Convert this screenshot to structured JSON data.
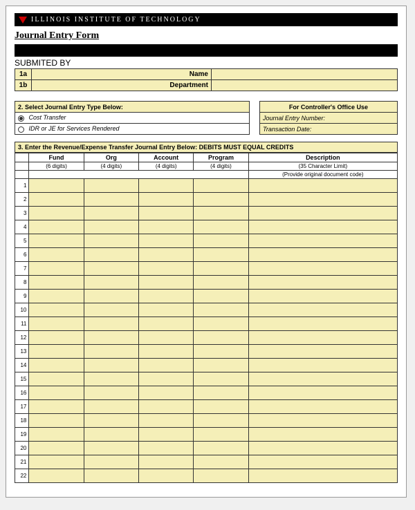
{
  "colors": {
    "cream": "#f5efb8",
    "black": "#000000",
    "logo_red": "#cc0000",
    "border": "#333333"
  },
  "header": {
    "institution": "ILLINOIS INSTITUTE OF TECHNOLOGY",
    "form_title": "Journal Entry Form"
  },
  "submitted": {
    "label": "SUBMITED BY",
    "rows": [
      {
        "tag": "1a",
        "label": "Name"
      },
      {
        "tag": "1b",
        "label": "Department"
      }
    ]
  },
  "section2": {
    "left": {
      "header": "2.  Select Journal Entry Type Below:",
      "options": [
        {
          "label": "Cost Transfer",
          "selected": true
        },
        {
          "label": "IDR or JE for Services Rendered",
          "selected": false
        }
      ]
    },
    "right": {
      "header": "For Controller's Office Use",
      "fields": [
        "Journal Entry Number:",
        "Transaction Date:"
      ]
    }
  },
  "section3": {
    "header": "3.  Enter the Revenue/Expense Transfer Journal Entry Below: DEBITS MUST EQUAL CREDITS",
    "columns": [
      {
        "title": "Fund",
        "sub": "(6 digits)"
      },
      {
        "title": "Org",
        "sub": "(4 digits)"
      },
      {
        "title": "Account",
        "sub": "(4 digits)"
      },
      {
        "title": "Program",
        "sub": "(4 digits)"
      },
      {
        "title": "Description",
        "sub": "(35 Character Limit)"
      }
    ],
    "desc_note": "(Provide original document code)",
    "row_count": 22
  }
}
